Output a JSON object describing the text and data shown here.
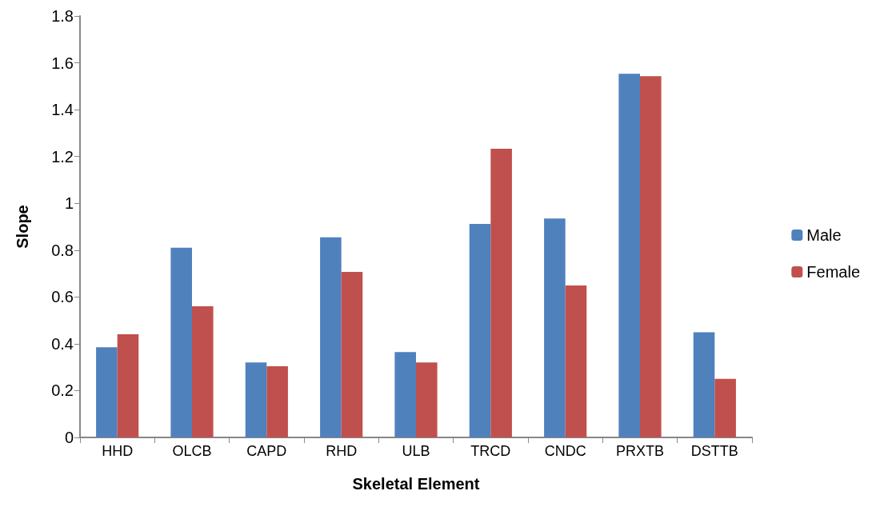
{
  "chart_data": {
    "type": "bar",
    "xlabel": "Skeletal Element",
    "ylabel": "Slope",
    "categories": [
      "HHD",
      "OLCB",
      "CAPD",
      "RHD",
      "ULB",
      "TRCD",
      "CNDC",
      "PRXTB",
      "DSTTB"
    ],
    "series": [
      {
        "name": "Male",
        "color": "#4f81bd",
        "values": [
          0.385,
          0.81,
          0.32,
          0.855,
          0.365,
          0.912,
          0.935,
          1.553,
          0.449
        ]
      },
      {
        "name": "Female",
        "color": "#c0504d",
        "values": [
          0.441,
          0.56,
          0.304,
          0.707,
          0.32,
          1.233,
          0.649,
          1.543,
          0.25
        ]
      }
    ],
    "ylim": [
      0,
      1.8
    ],
    "yticks": [
      0,
      0.2,
      0.4,
      0.6,
      0.8,
      1,
      1.2,
      1.4,
      1.6,
      1.8
    ],
    "grid": false,
    "legend": "right"
  }
}
